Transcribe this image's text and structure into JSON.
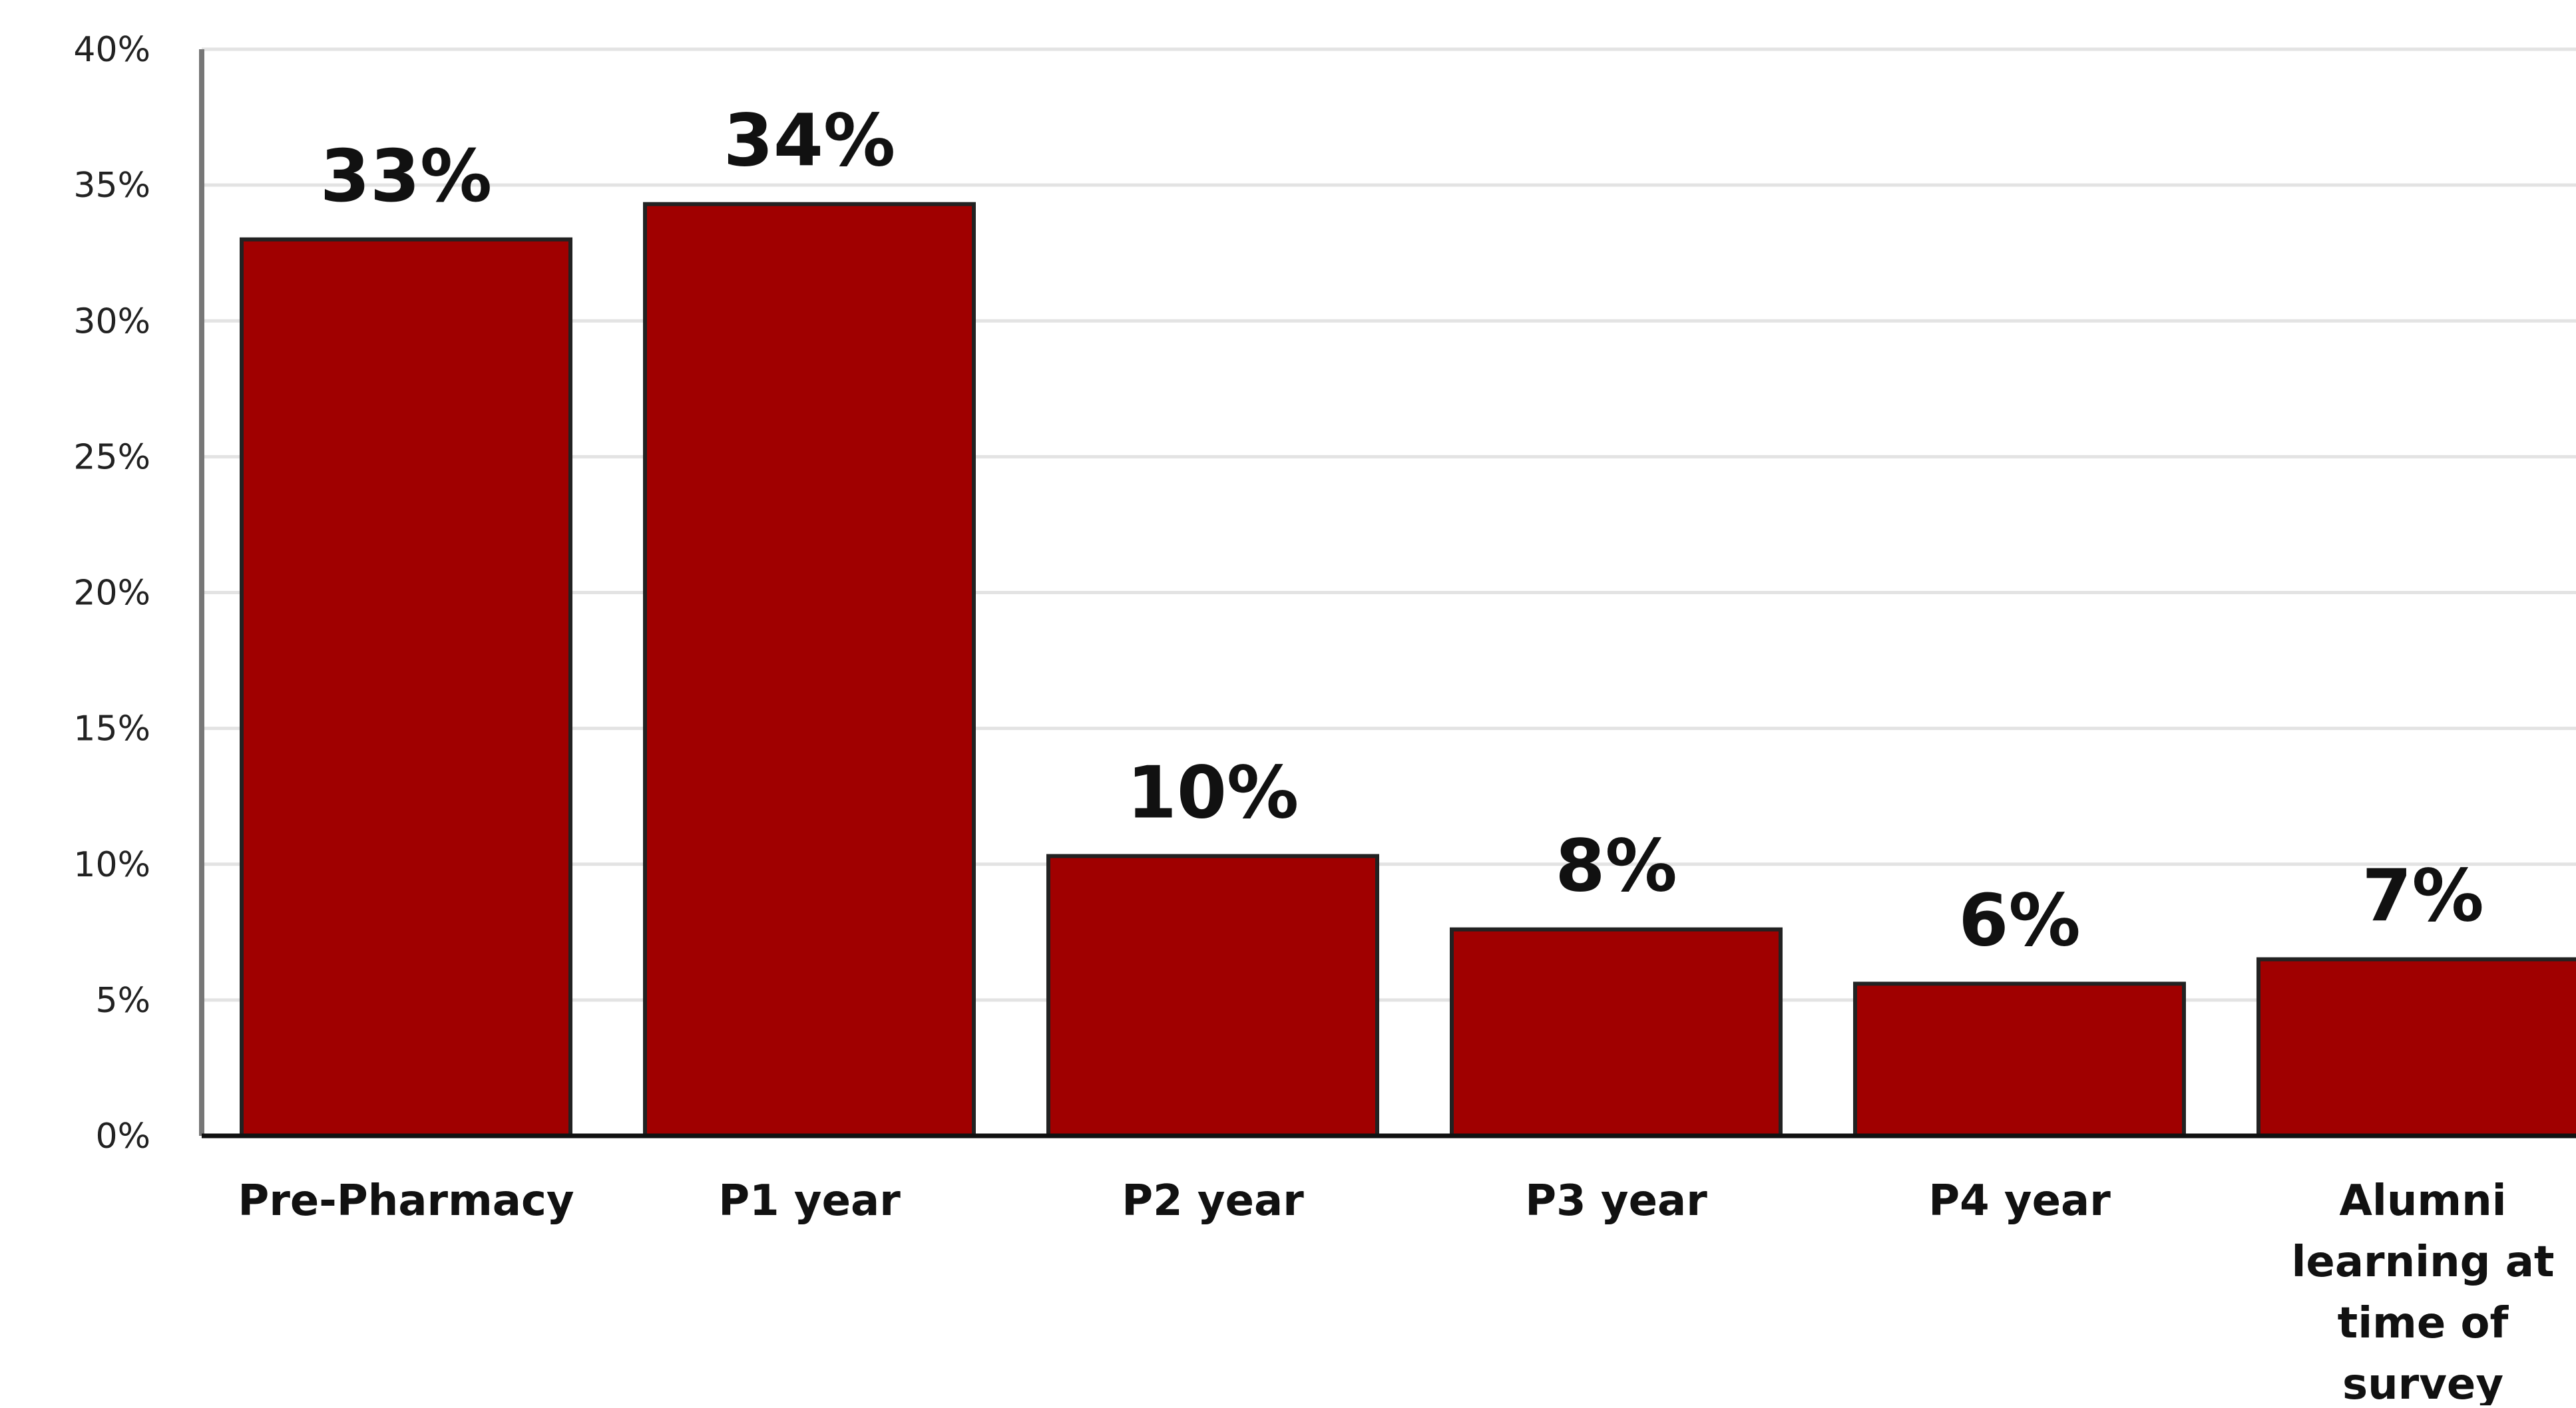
{
  "chart_data": {
    "type": "bar",
    "title": "",
    "xlabel": "",
    "ylabel": "",
    "categories": [
      [
        "Pre-Pharmacy"
      ],
      [
        "P1 year"
      ],
      [
        "P2 year"
      ],
      [
        "P3 year"
      ],
      [
        "P4 year"
      ],
      [
        "Alumni",
        "learning at",
        "time of",
        "survey"
      ]
    ],
    "values": [
      33,
      34.3,
      10.3,
      7.6,
      5.6,
      6.5
    ],
    "data_labels": [
      "33%",
      "34%",
      "10%",
      "8%",
      "6%",
      "7%"
    ],
    "ylim": [
      0,
      40
    ],
    "yticks": [
      0,
      5,
      10,
      15,
      20,
      25,
      30,
      35,
      40
    ],
    "ytick_labels": [
      "0%",
      "5%",
      "10%",
      "15%",
      "20%",
      "25%",
      "30%",
      "35%",
      "40%"
    ],
    "grid": true,
    "legend": "none",
    "colors": {
      "bar": "#a00000",
      "bar_outline": "#222222",
      "grid": "#e3e3e3"
    }
  }
}
